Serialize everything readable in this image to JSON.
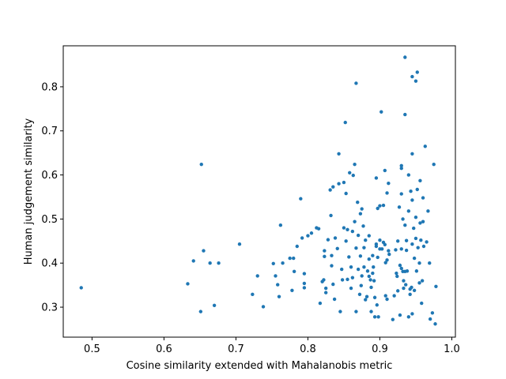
{
  "chart_data": {
    "type": "scatter",
    "title": "",
    "xlabel": "Cosine similarity extended with Mahalanobis metric",
    "ylabel": "Human judgement similarity",
    "xlim": [
      0.46,
      1.005
    ],
    "ylim": [
      0.232,
      0.893
    ],
    "xticks": [
      0.5,
      0.6,
      0.7,
      0.8,
      0.9,
      1.0
    ],
    "xtick_labels": [
      "0.5",
      "0.6",
      "0.7",
      "0.8",
      "0.9",
      "1.0"
    ],
    "yticks": [
      0.3,
      0.4,
      0.5,
      0.6,
      0.7,
      0.8
    ],
    "ytick_labels": [
      "0.3",
      "0.4",
      "0.5",
      "0.6",
      "0.7",
      "0.8"
    ],
    "grid": false,
    "marker_color": "#1f77b4",
    "series": [
      {
        "points": [
          [
            0.485,
            0.344
          ],
          [
            0.633,
            0.353
          ],
          [
            0.641,
            0.405
          ],
          [
            0.651,
            0.29
          ],
          [
            0.652,
            0.624
          ],
          [
            0.655,
            0.428
          ],
          [
            0.664,
            0.4
          ],
          [
            0.67,
            0.304
          ],
          [
            0.676,
            0.4
          ],
          [
            0.705,
            0.443
          ],
          [
            0.723,
            0.329
          ],
          [
            0.73,
            0.371
          ],
          [
            0.738,
            0.301
          ],
          [
            0.752,
            0.399
          ],
          [
            0.755,
            0.371
          ],
          [
            0.758,
            0.351
          ],
          [
            0.76,
            0.324
          ],
          [
            0.762,
            0.486
          ],
          [
            0.765,
            0.4
          ],
          [
            0.775,
            0.411
          ],
          [
            0.778,
            0.338
          ],
          [
            0.78,
            0.411
          ],
          [
            0.781,
            0.381
          ],
          [
            0.785,
            0.438
          ],
          [
            0.79,
            0.546
          ],
          [
            0.792,
            0.457
          ],
          [
            0.795,
            0.376
          ],
          [
            0.795,
            0.354
          ],
          [
            0.795,
            0.344
          ],
          [
            0.8,
            0.462
          ],
          [
            0.805,
            0.468
          ],
          [
            0.812,
            0.48
          ],
          [
            0.815,
            0.478
          ],
          [
            0.817,
            0.309
          ],
          [
            0.82,
            0.358
          ],
          [
            0.822,
            0.362
          ],
          [
            0.823,
            0.428
          ],
          [
            0.823,
            0.415
          ],
          [
            0.825,
            0.343
          ],
          [
            0.825,
            0.333
          ],
          [
            0.828,
            0.453
          ],
          [
            0.831,
            0.566
          ],
          [
            0.832,
            0.508
          ],
          [
            0.833,
            0.417
          ],
          [
            0.833,
            0.394
          ],
          [
            0.835,
            0.573
          ],
          [
            0.835,
            0.352
          ],
          [
            0.837,
            0.318
          ],
          [
            0.838,
            0.457
          ],
          [
            0.841,
            0.433
          ],
          [
            0.843,
            0.648
          ],
          [
            0.843,
            0.58
          ],
          [
            0.845,
            0.29
          ],
          [
            0.847,
            0.386
          ],
          [
            0.848,
            0.362
          ],
          [
            0.85,
            0.583
          ],
          [
            0.85,
            0.48
          ],
          [
            0.852,
            0.719
          ],
          [
            0.853,
            0.558
          ],
          [
            0.853,
            0.45
          ],
          [
            0.855,
            0.476
          ],
          [
            0.855,
            0.363
          ],
          [
            0.857,
            0.414
          ],
          [
            0.858,
            0.605
          ],
          [
            0.86,
            0.391
          ],
          [
            0.86,
            0.343
          ],
          [
            0.862,
            0.472
          ],
          [
            0.862,
            0.367
          ],
          [
            0.863,
            0.599
          ],
          [
            0.865,
            0.624
          ],
          [
            0.865,
            0.494
          ],
          [
            0.867,
            0.808
          ],
          [
            0.867,
            0.434
          ],
          [
            0.867,
            0.29
          ],
          [
            0.869,
            0.538
          ],
          [
            0.87,
            0.463
          ],
          [
            0.87,
            0.386
          ],
          [
            0.872,
            0.329
          ],
          [
            0.873,
            0.512
          ],
          [
            0.873,
            0.416
          ],
          [
            0.874,
            0.349
          ],
          [
            0.875,
            0.523
          ],
          [
            0.875,
            0.371
          ],
          [
            0.877,
            0.484
          ],
          [
            0.878,
            0.435
          ],
          [
            0.878,
            0.391
          ],
          [
            0.88,
            0.452
          ],
          [
            0.88,
            0.317
          ],
          [
            0.882,
            0.324
          ],
          [
            0.883,
            0.382
          ],
          [
            0.885,
            0.462
          ],
          [
            0.885,
            0.409
          ],
          [
            0.885,
            0.37
          ],
          [
            0.887,
            0.362
          ],
          [
            0.888,
            0.29
          ],
          [
            0.888,
            0.345
          ],
          [
            0.89,
            0.417
          ],
          [
            0.89,
            0.377
          ],
          [
            0.891,
            0.391
          ],
          [
            0.892,
            0.36
          ],
          [
            0.893,
            0.322
          ],
          [
            0.893,
            0.278
          ],
          [
            0.895,
            0.593
          ],
          [
            0.895,
            0.443
          ],
          [
            0.895,
            0.438
          ],
          [
            0.896,
            0.305
          ],
          [
            0.897,
            0.524
          ],
          [
            0.897,
            0.413
          ],
          [
            0.898,
            0.278
          ],
          [
            0.9,
            0.53
          ],
          [
            0.9,
            0.452
          ],
          [
            0.9,
            0.432
          ],
          [
            0.902,
            0.743
          ],
          [
            0.903,
            0.432
          ],
          [
            0.905,
            0.531
          ],
          [
            0.905,
            0.447
          ],
          [
            0.907,
            0.61
          ],
          [
            0.907,
            0.442
          ],
          [
            0.908,
            0.401
          ],
          [
            0.908,
            0.326
          ],
          [
            0.91,
            0.559
          ],
          [
            0.91,
            0.407
          ],
          [
            0.91,
            0.318
          ],
          [
            0.912,
            0.581
          ],
          [
            0.912,
            0.428
          ],
          [
            0.913,
            0.42
          ],
          [
            0.918,
            0.272
          ],
          [
            0.92,
            0.326
          ],
          [
            0.922,
            0.43
          ],
          [
            0.923,
            0.377
          ],
          [
            0.924,
            0.37
          ],
          [
            0.925,
            0.45
          ],
          [
            0.925,
            0.337
          ],
          [
            0.927,
            0.527
          ],
          [
            0.928,
            0.395
          ],
          [
            0.928,
            0.282
          ],
          [
            0.93,
            0.615
          ],
          [
            0.93,
            0.621
          ],
          [
            0.93,
            0.557
          ],
          [
            0.93,
            0.432
          ],
          [
            0.93,
            0.388
          ],
          [
            0.932,
            0.5
          ],
          [
            0.932,
            0.381
          ],
          [
            0.933,
            0.36
          ],
          [
            0.933,
            0.343
          ],
          [
            0.935,
            0.867
          ],
          [
            0.935,
            0.737
          ],
          [
            0.935,
            0.486
          ],
          [
            0.935,
            0.381
          ],
          [
            0.936,
            0.351
          ],
          [
            0.937,
            0.451
          ],
          [
            0.937,
            0.429
          ],
          [
            0.938,
            0.382
          ],
          [
            0.94,
            0.6
          ],
          [
            0.94,
            0.518
          ],
          [
            0.94,
            0.278
          ],
          [
            0.942,
            0.341
          ],
          [
            0.942,
            0.329
          ],
          [
            0.943,
            0.563
          ],
          [
            0.944,
            0.345
          ],
          [
            0.945,
            0.823
          ],
          [
            0.945,
            0.648
          ],
          [
            0.945,
            0.543
          ],
          [
            0.945,
            0.443
          ],
          [
            0.945,
            0.285
          ],
          [
            0.947,
            0.479
          ],
          [
            0.948,
            0.411
          ],
          [
            0.948,
            0.338
          ],
          [
            0.95,
            0.813
          ],
          [
            0.95,
            0.504
          ],
          [
            0.95,
            0.456
          ],
          [
            0.951,
            0.382
          ],
          [
            0.952,
            0.833
          ],
          [
            0.952,
            0.567
          ],
          [
            0.953,
            0.435
          ],
          [
            0.955,
            0.4
          ],
          [
            0.955,
            0.355
          ],
          [
            0.956,
            0.587
          ],
          [
            0.956,
            0.491
          ],
          [
            0.957,
            0.452
          ],
          [
            0.958,
            0.309
          ],
          [
            0.959,
            0.36
          ],
          [
            0.96,
            0.548
          ],
          [
            0.96,
            0.494
          ],
          [
            0.961,
            0.438
          ],
          [
            0.963,
            0.665
          ],
          [
            0.965,
            0.448
          ],
          [
            0.967,
            0.518
          ],
          [
            0.969,
            0.4
          ],
          [
            0.97,
            0.273
          ],
          [
            0.973,
            0.287
          ],
          [
            0.975,
            0.624
          ],
          [
            0.977,
            0.262
          ],
          [
            0.978,
            0.347
          ]
        ]
      }
    ]
  }
}
